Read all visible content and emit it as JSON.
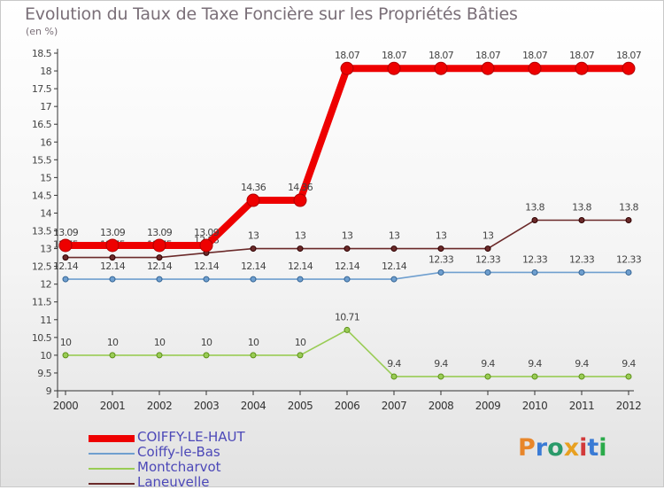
{
  "chart_data": {
    "type": "line",
    "title": "Evolution du Taux de Taxe Foncière sur les Propriétés Bâties",
    "unit_label": "(en %)",
    "x": [
      "2000",
      "2001",
      "2002",
      "2003",
      "2004",
      "2005",
      "2006",
      "2007",
      "2008",
      "2009",
      "2010",
      "2011",
      "2012"
    ],
    "ylim": [
      9,
      18.5
    ],
    "y_ticks": [
      "9",
      "9.5",
      "10",
      "10.5",
      "11",
      "11.5",
      "12",
      "12.5",
      "13",
      "13.5",
      "14",
      "14.5",
      "15",
      "15.5",
      "16",
      "16.5",
      "17",
      "17.5",
      "18",
      "18.5"
    ],
    "grid": false,
    "legend_position": "bottom-left",
    "series": [
      {
        "name": "Montcharvot",
        "color": "#99cc55",
        "values": [
          10,
          10,
          10,
          10,
          10,
          10,
          10.71,
          9.4,
          9.4,
          9.4,
          9.4,
          9.4,
          9.4
        ],
        "labels": [
          "10",
          "10",
          "10",
          "10",
          "10",
          "10",
          "10.71",
          "9.4",
          "9.4",
          "9.4",
          "9.4",
          "9.4",
          "9.4"
        ]
      },
      {
        "name": "Coiffy-le-Bas",
        "color": "#6f9fcf",
        "values": [
          12.14,
          12.14,
          12.14,
          12.14,
          12.14,
          12.14,
          12.14,
          12.14,
          12.33,
          12.33,
          12.33,
          12.33,
          12.33
        ],
        "labels": [
          "12.14",
          "12.14",
          "12.14",
          "12.14",
          "12.14",
          "12.14",
          "12.14",
          "12.14",
          "12.33",
          "12.33",
          "12.33",
          "12.33",
          "12.33"
        ]
      },
      {
        "name": "Laneuvelle",
        "color": "#6b2a2a",
        "values": [
          12.75,
          12.75,
          12.75,
          12.88,
          13,
          13,
          13,
          13,
          13,
          13,
          13.8,
          13.8,
          13.8
        ],
        "labels": [
          "12.75",
          "12.75",
          "12.75",
          "12.88",
          "13",
          "13",
          "13",
          "13",
          "13",
          "13",
          "13.8",
          "13.8",
          "13.8"
        ]
      },
      {
        "name": "COIFFY-LE-HAUT",
        "color": "#ee0000",
        "values": [
          13.09,
          13.09,
          13.09,
          13.09,
          14.36,
          14.36,
          18.07,
          18.07,
          18.07,
          18.07,
          18.07,
          18.07,
          18.07
        ],
        "labels": [
          "13.09",
          "13.09",
          "13.09",
          "13.09",
          "14.36",
          "14.36",
          "18.07",
          "18.07",
          "18.07",
          "18.07",
          "18.07",
          "18.07",
          "18.07"
        ]
      }
    ],
    "legend": [
      {
        "name": "COIFFY-LE-HAUT",
        "color": "#ee0000",
        "thick": true
      },
      {
        "name": "Coiffy-le-Bas",
        "color": "#6f9fcf",
        "thick": false
      },
      {
        "name": "Montcharvot",
        "color": "#99cc55",
        "thick": false
      },
      {
        "name": "Laneuvelle",
        "color": "#6b2a2a",
        "thick": false
      }
    ]
  },
  "logo": {
    "text": "Proxiti",
    "colors": [
      "#e8862a",
      "#3a7bd5",
      "#2a9a6a",
      "#e8a020",
      "#d23a3a",
      "#3a7bd5",
      "#2aaa4a"
    ]
  }
}
